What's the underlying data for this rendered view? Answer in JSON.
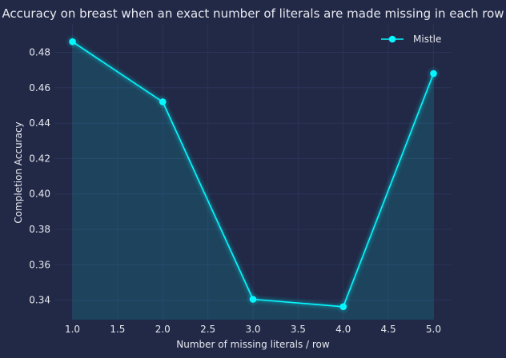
{
  "chart_data": {
    "type": "line",
    "title": "Accuracy on breast when an exact number of literals are made missing in each row",
    "xlabel": "Number of missing literals / row",
    "ylabel": "Completion Accuracy",
    "x": [
      1.0,
      2.0,
      3.0,
      4.0,
      5.0
    ],
    "xticks": [
      "1.0",
      "1.5",
      "2.0",
      "2.5",
      "3.0",
      "3.5",
      "4.0",
      "4.5",
      "5.0"
    ],
    "yticks": [
      "0.34",
      "0.36",
      "0.38",
      "0.40",
      "0.42",
      "0.44",
      "0.46",
      "0.48"
    ],
    "xlim": [
      0.8,
      5.2
    ],
    "ylim": [
      0.329,
      0.496
    ],
    "grid": true,
    "legend_position": "top-right",
    "series": [
      {
        "name": "Mistle",
        "values": [
          0.486,
          0.452,
          0.3405,
          0.3363,
          0.468
        ],
        "color": "#08F7FE"
      }
    ]
  }
}
